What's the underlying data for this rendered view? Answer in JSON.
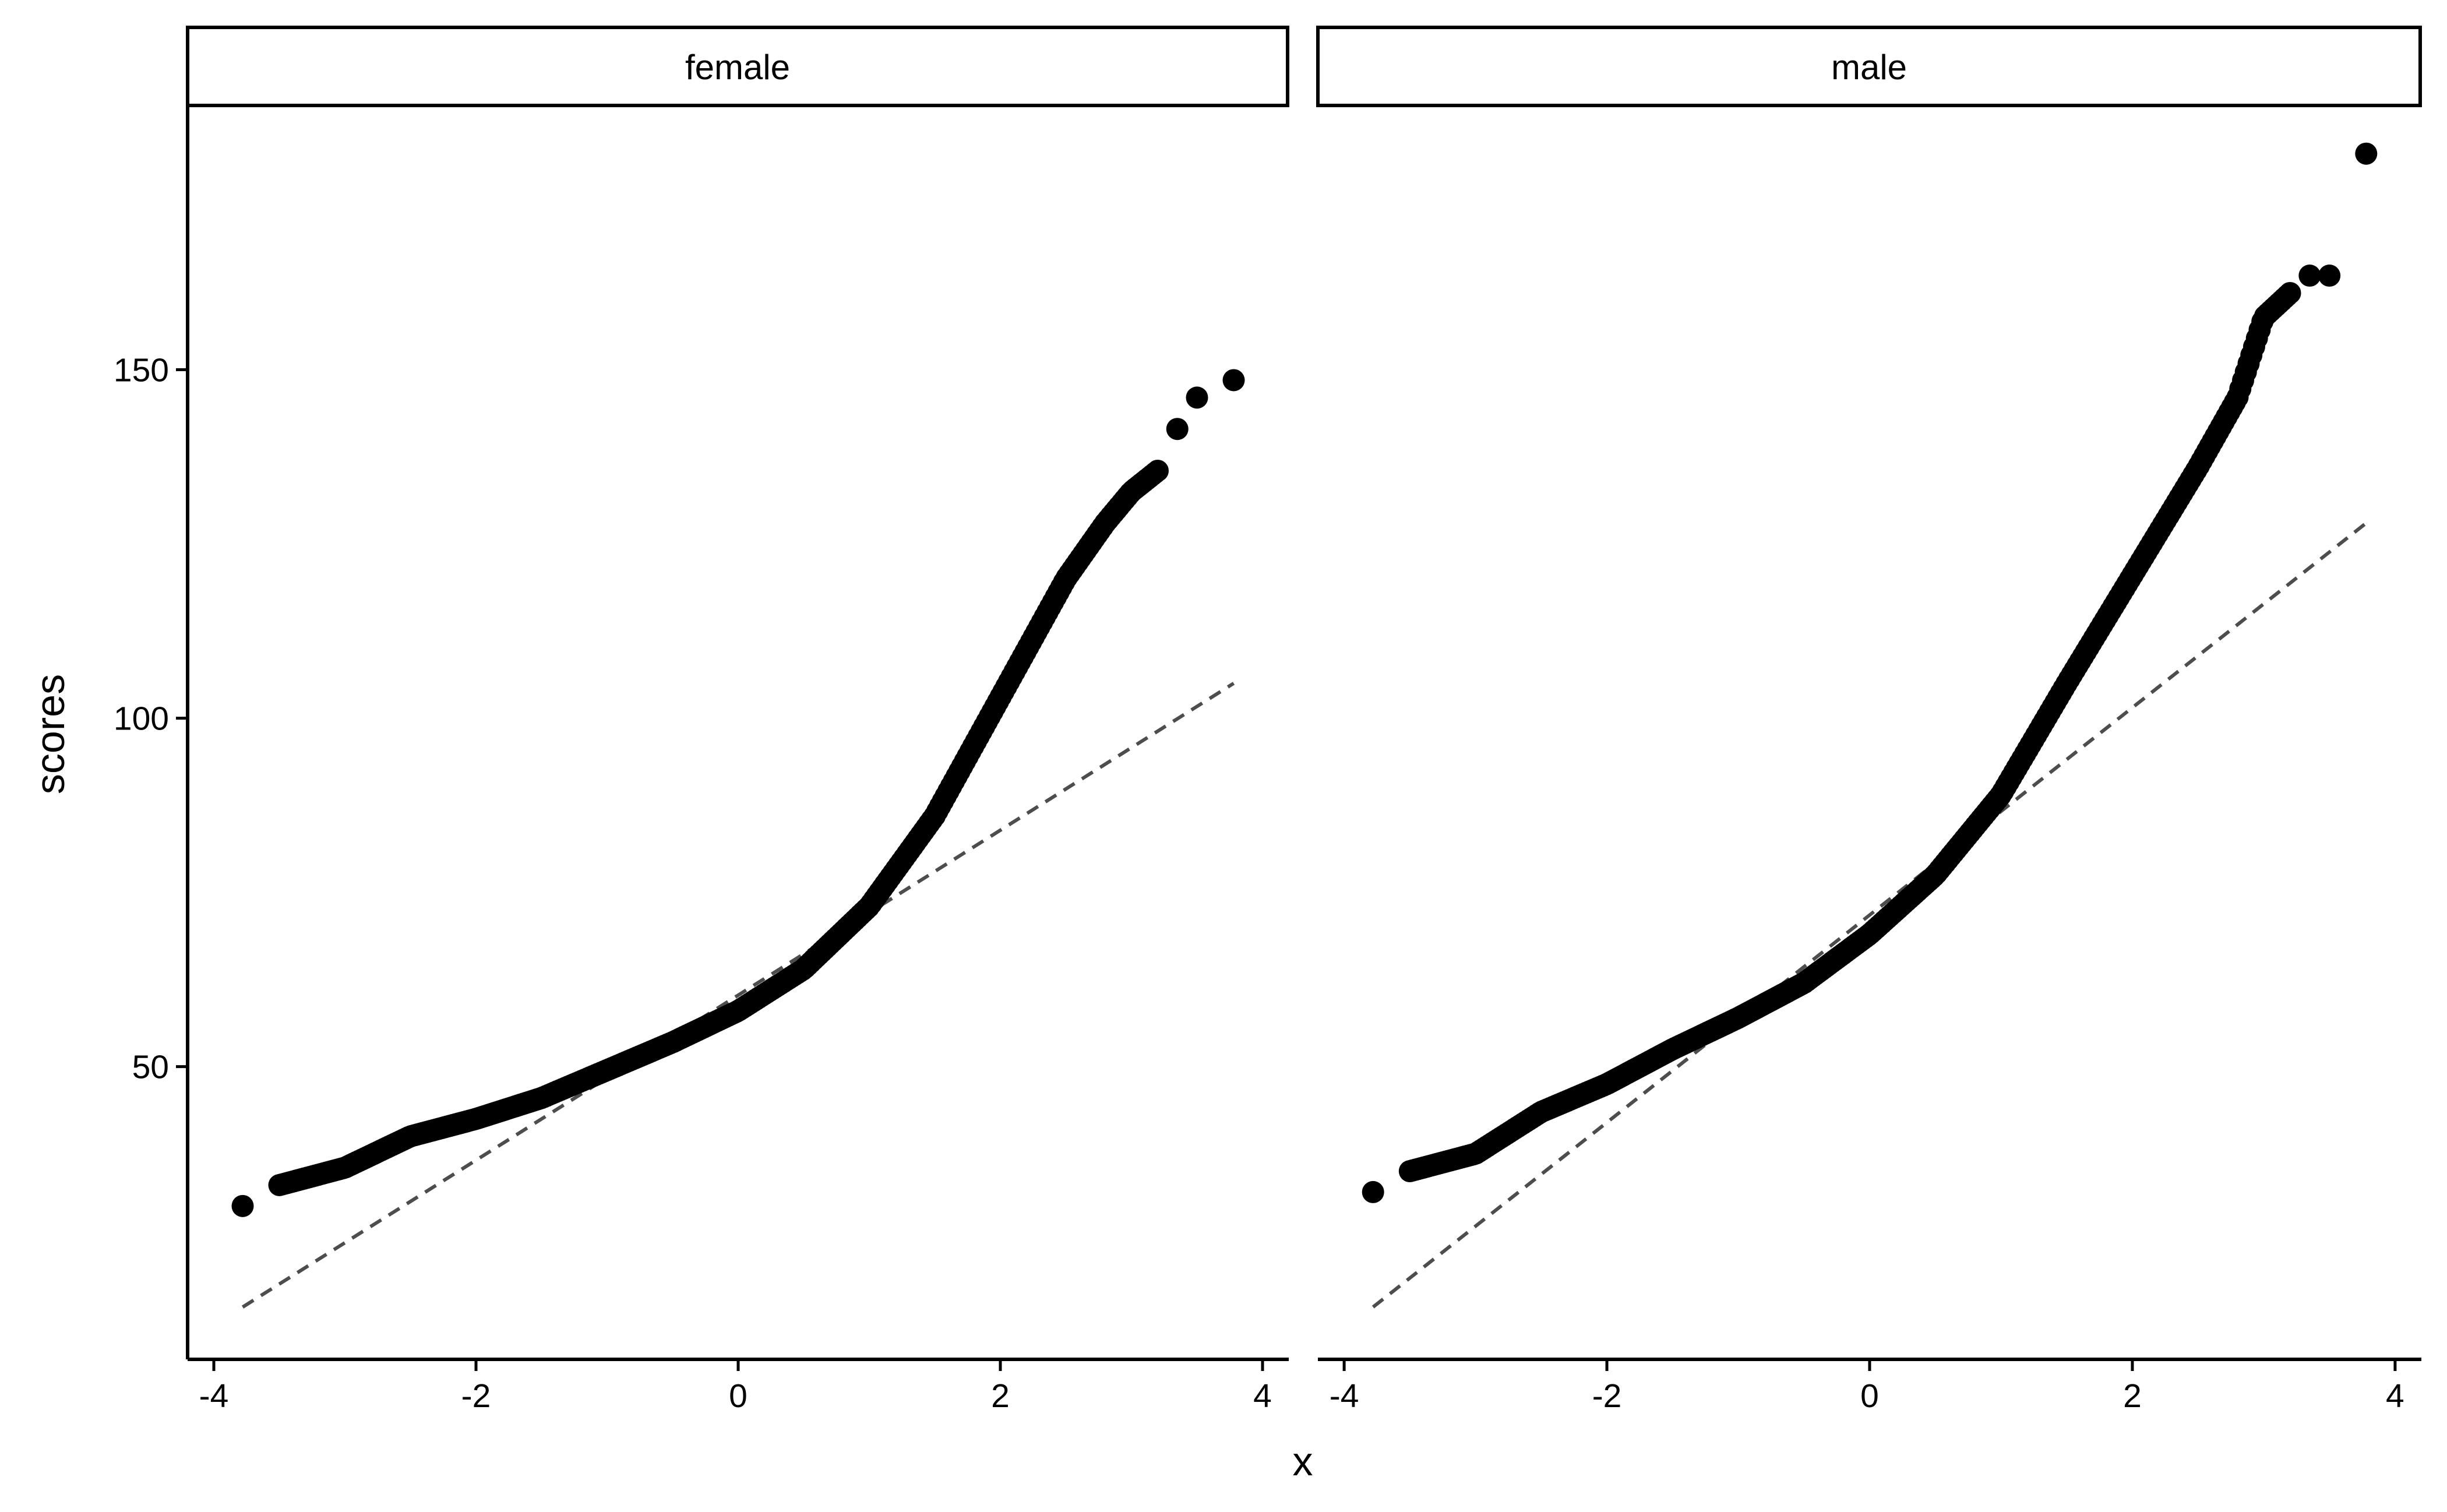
{
  "chart_data": {
    "type": "scatter",
    "subtype": "qq-plot faceted",
    "xlabel": "x",
    "ylabel": "scores",
    "xlim": [
      -4.2,
      4.2
    ],
    "ylim": [
      8,
      188
    ],
    "x_ticks": [
      -4,
      -2,
      0,
      2,
      4
    ],
    "x_tick_labels": [
      "-4",
      "-2",
      "0",
      "2",
      "4"
    ],
    "y_ticks": [
      50,
      100,
      150
    ],
    "y_tick_labels": [
      "50",
      "100",
      "150"
    ],
    "grid": false,
    "point_color": "#000000",
    "line_color": "#4d4d4d",
    "line_style": "dashed",
    "panels": [
      {
        "facet_label": "female",
        "reference_line": {
          "x": [
            -3.78,
            3.78
          ],
          "y": [
            15.5,
            105.0
          ]
        },
        "curve_knots": {
          "x": [
            -3.5,
            -3.0,
            -2.5,
            -2.0,
            -1.5,
            -1.0,
            -0.5,
            0.0,
            0.5,
            1.0,
            1.5,
            2.0,
            2.5,
            2.8,
            3.0,
            3.2
          ],
          "y": [
            33.0,
            35.5,
            40.0,
            42.5,
            45.5,
            49.5,
            53.5,
            58.0,
            64.0,
            73.0,
            86.0,
            103.0,
            120.0,
            128.0,
            132.5,
            135.5
          ]
        },
        "outliers": {
          "x": [
            -3.78,
            3.35,
            3.5,
            3.78
          ],
          "y": [
            30.0,
            141.5,
            146.0,
            148.5
          ]
        }
      },
      {
        "facet_label": "male",
        "reference_line": {
          "x": [
            -3.78,
            3.78
          ],
          "y": [
            15.5,
            128.0
          ]
        },
        "curve_knots": {
          "x": [
            -3.5,
            -3.0,
            -2.5,
            -2.0,
            -1.5,
            -1.0,
            -0.5,
            0.0,
            0.5,
            1.0,
            1.5,
            2.0,
            2.5,
            2.8,
            3.0,
            3.2
          ],
          "y": [
            35.0,
            37.5,
            43.5,
            47.5,
            52.5,
            57.0,
            62.0,
            69.0,
            77.5,
            89.0,
            105.0,
            120.5,
            136.0,
            146.0,
            157.5,
            161.0
          ]
        },
        "outliers": {
          "x": [
            -3.78,
            3.35,
            3.5,
            3.78
          ],
          "y": [
            32.0,
            163.5,
            163.5,
            181.0
          ]
        }
      }
    ]
  }
}
